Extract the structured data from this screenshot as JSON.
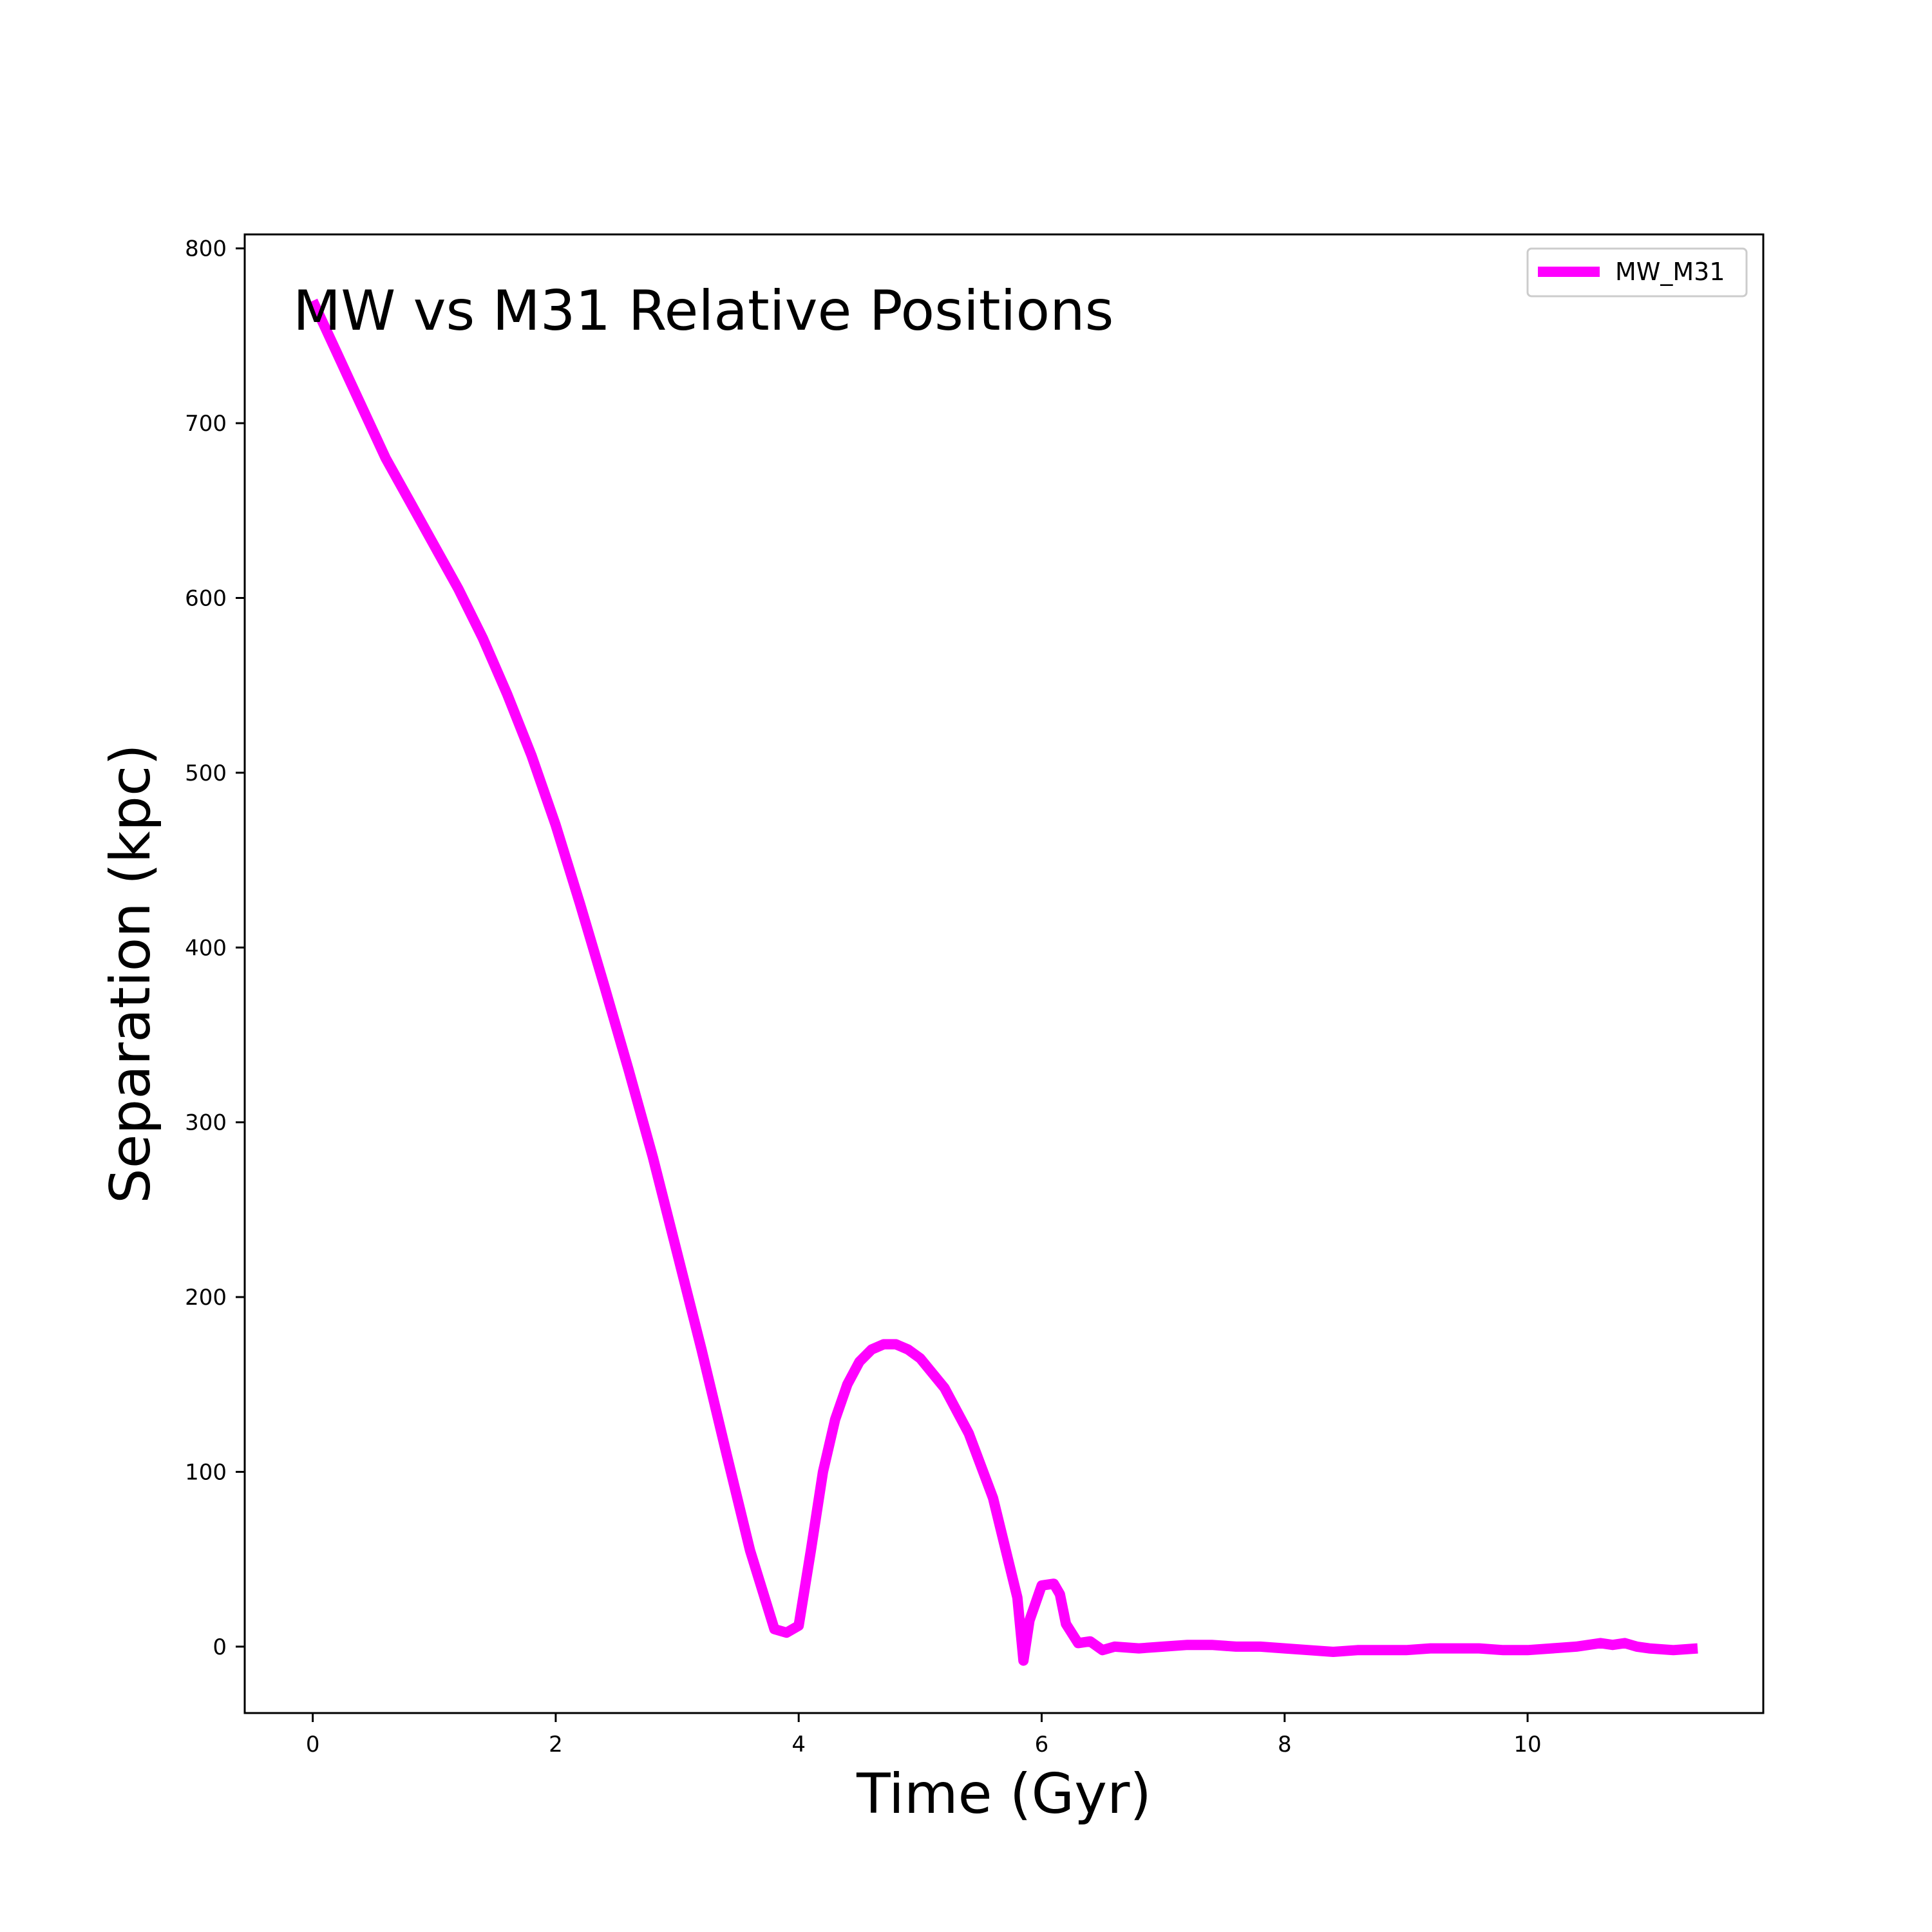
{
  "chart_data": {
    "type": "line",
    "title": "MW vs M31 Relative Positions",
    "xlabel": "Time (Gyr)",
    "ylabel": "Separation (kpc)",
    "xlim": [
      -0.56,
      11.94
    ],
    "ylim": [
      -38,
      808
    ],
    "xticks": [
      0,
      2,
      4,
      6,
      8,
      10
    ],
    "yticks": [
      0,
      100,
      200,
      300,
      400,
      500,
      600,
      700,
      800
    ],
    "grid": false,
    "legend_position": "top-right",
    "series": [
      {
        "name": "MW_M31",
        "color": "#ff00ff",
        "x": [
          0,
          0.1,
          0.2,
          0.3,
          0.4,
          0.5,
          0.6,
          0.8,
          1.0,
          1.2,
          1.4,
          1.6,
          1.8,
          2.0,
          2.2,
          2.4,
          2.6,
          2.8,
          3.0,
          3.2,
          3.4,
          3.6,
          3.8,
          3.9,
          4.0,
          4.1,
          4.2,
          4.3,
          4.4,
          4.5,
          4.6,
          4.7,
          4.8,
          4.9,
          5.0,
          5.2,
          5.4,
          5.6,
          5.8,
          5.85,
          5.9,
          6.0,
          6.1,
          6.15,
          6.2,
          6.3,
          6.4,
          6.5,
          6.6,
          6.8,
          7.0,
          7.2,
          7.4,
          7.6,
          7.8,
          8.0,
          8.2,
          8.4,
          8.6,
          8.8,
          9.0,
          9.2,
          9.4,
          9.6,
          9.8,
          10.0,
          10.2,
          10.4,
          10.6,
          10.7,
          10.8,
          10.9,
          11.0,
          11.2,
          11.4
        ],
        "values": [
          770,
          755,
          740,
          725,
          710,
          695,
          680,
          655,
          630,
          605,
          577,
          545,
          510,
          470,
          425,
          378,
          330,
          280,
          225,
          170,
          112,
          55,
          10,
          8,
          12,
          55,
          100,
          130,
          150,
          163,
          170,
          173,
          173,
          170,
          165,
          148,
          122,
          85,
          28,
          -8,
          15,
          35,
          36,
          30,
          13,
          2,
          3,
          -2,
          0,
          -1,
          0,
          1,
          1,
          0,
          0,
          -1,
          -2,
          -3,
          -2,
          -2,
          -2,
          -1,
          -1,
          -1,
          -2,
          -2,
          -1,
          0,
          2,
          1,
          2,
          0,
          -1,
          -2,
          -1
        ]
      }
    ]
  }
}
